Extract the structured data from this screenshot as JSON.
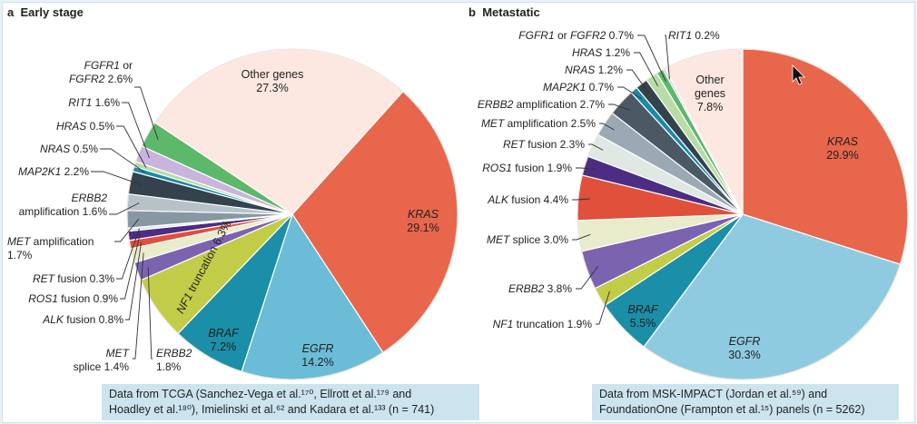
{
  "panels": [
    {
      "letter": "a",
      "title": "Early stage",
      "caption_line1": "Data from TCGA (Sanchez-Vega et al.¹⁷⁰, Ellrott et al.¹⁷⁹ and",
      "caption_line2": "Hoadley et al.¹⁸⁰), Imielinski et al.⁶² and Kadara et al.¹³³ (n = 741)"
    },
    {
      "letter": "b",
      "title": "Metastatic",
      "caption_line1": "Data from MSK-IMPACT (Jordan et al.⁵⁹) and",
      "caption_line2": "FoundationOne (Frampton et al.¹⁵) panels (n = 5262)"
    }
  ],
  "chart_data": [
    {
      "type": "pie",
      "title": "Early stage",
      "n": 741,
      "slices": [
        {
          "label": "KRAS",
          "value": 29.1,
          "color": "#e8664c"
        },
        {
          "label": "EGFR",
          "value": 14.2,
          "color": "#6bbcd6"
        },
        {
          "label": "BRAF",
          "value": 7.2,
          "color": "#1b8ea8"
        },
        {
          "label": "NF1 truncation",
          "value": 6.3,
          "color": "#c2cc48"
        },
        {
          "label": "ERBB2",
          "value": 1.8,
          "color": "#7b63b0"
        },
        {
          "label": "MET splice",
          "value": 1.4,
          "color": "#e9eccb"
        },
        {
          "label": "ALK fusion",
          "value": 0.8,
          "color": "#e0503a"
        },
        {
          "label": "ROS1 fusion",
          "value": 0.9,
          "color": "#4c2d82"
        },
        {
          "label": "RET fusion",
          "value": 0.3,
          "color": "#dfe8e3"
        },
        {
          "label": "MET amplification",
          "value": 1.7,
          "color": "#8798a4"
        },
        {
          "label": "ERBB2 amplification",
          "value": 1.6,
          "color": "#b6c2c8"
        },
        {
          "label": "MAP2K1",
          "value": 2.2,
          "color": "#33424d"
        },
        {
          "label": "NRAS",
          "value": 0.5,
          "color": "#1a8aa6"
        },
        {
          "label": "HRAS",
          "value": 0.5,
          "color": "#b9dca6"
        },
        {
          "label": "RIT1",
          "value": 1.6,
          "color": "#c9b4de"
        },
        {
          "label": "FGFR1 or FGFR2",
          "value": 2.6,
          "color": "#5cb86a"
        },
        {
          "label": "Other genes",
          "value": 27.3,
          "color": "#fde8e1"
        }
      ]
    },
    {
      "type": "pie",
      "title": "Metastatic",
      "n": 5262,
      "slices": [
        {
          "label": "KRAS",
          "value": 29.9,
          "color": "#e8664c"
        },
        {
          "label": "EGFR",
          "value": 30.3,
          "color": "#8fcbe0"
        },
        {
          "label": "BRAF",
          "value": 5.5,
          "color": "#1b8ea8"
        },
        {
          "label": "NF1 truncation",
          "value": 1.9,
          "color": "#c2cc48"
        },
        {
          "label": "ERBB2",
          "value": 3.8,
          "color": "#7b63b0"
        },
        {
          "label": "MET splice",
          "value": 3.0,
          "color": "#e9eccb"
        },
        {
          "label": "ALK fusion",
          "value": 4.4,
          "color": "#e0503a"
        },
        {
          "label": "ROS1 fusion",
          "value": 1.9,
          "color": "#4c2d82"
        },
        {
          "label": "RET fusion",
          "value": 2.3,
          "color": "#dfe8e3"
        },
        {
          "label": "MET amplification",
          "value": 2.5,
          "color": "#9aa9b4"
        },
        {
          "label": "ERBB2 amplification",
          "value": 2.7,
          "color": "#4a5964"
        },
        {
          "label": "MAP2K1",
          "value": 0.7,
          "color": "#1a8aa6"
        },
        {
          "label": "NRAS",
          "value": 1.2,
          "color": "#33424d"
        },
        {
          "label": "HRAS",
          "value": 1.2,
          "color": "#b9dca6"
        },
        {
          "label": "FGFR1 or FGFR2",
          "value": 0.7,
          "color": "#5cb86a"
        },
        {
          "label": "RIT1",
          "value": 0.2,
          "color": "#c9b4de"
        },
        {
          "label": "Other genes",
          "value": 7.8,
          "color": "#fde8e1"
        }
      ]
    }
  ]
}
